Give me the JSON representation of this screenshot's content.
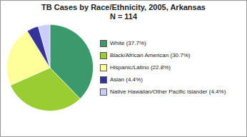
{
  "chart_data": {
    "type": "pie",
    "title": "TB Cases by Race/Ethnicity, 2005, Arkansas",
    "subtitle": "N = 114",
    "categories": [
      "White (37.7%)",
      "Black/African American (30.7%)",
      "Hispanic/Latino (22.8%)",
      "Asian (4.4%)",
      "Native Hawaiian/Other Pacific Islander (4.4%)"
    ],
    "values": [
      37.7,
      30.7,
      22.8,
      4.4,
      4.4
    ],
    "colors": [
      "#3a9a6c",
      "#9acd32",
      "#ffff99",
      "#333399",
      "#ccccff"
    ],
    "legend": "right"
  }
}
